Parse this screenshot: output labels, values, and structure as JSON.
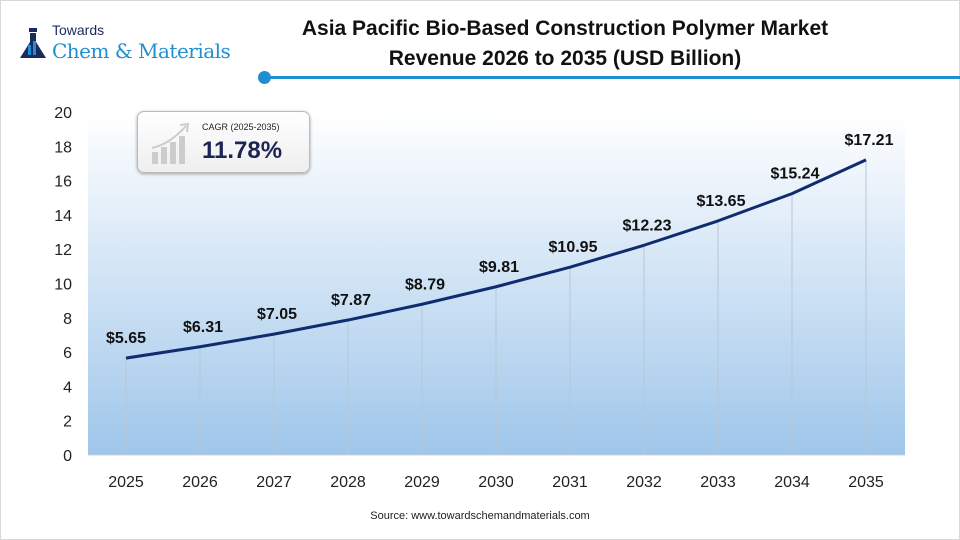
{
  "logo": {
    "line1": "Towards",
    "line2": "Chem & Materials"
  },
  "chart_data": {
    "type": "line",
    "title": "Asia Pacific Bio-Based Construction Polymer Market Revenue 2026 to 2035 (USD Billion)",
    "title_lines": [
      "Asia Pacific Bio-Based Construction Polymer Market",
      "Revenue 2026 to 2035 (USD Billion)"
    ],
    "categories": [
      "2025",
      "2026",
      "2027",
      "2028",
      "2029",
      "2030",
      "2031",
      "2032",
      "2033",
      "2034",
      "2035"
    ],
    "values": [
      5.65,
      6.31,
      7.05,
      7.87,
      8.79,
      9.81,
      10.95,
      12.23,
      13.65,
      15.24,
      17.21
    ],
    "data_labels": [
      "$5.65",
      "$6.31",
      "$7.05",
      "$7.87",
      "$8.79",
      "$9.81",
      "$10.95",
      "$12.23",
      "$13.65",
      "$15.24",
      "$17.21"
    ],
    "ylim": [
      0,
      20
    ],
    "yticks": [
      "0",
      "2",
      "4",
      "6",
      "8",
      "10",
      "12",
      "14",
      "16",
      "18",
      "20"
    ],
    "xlabel": "",
    "ylabel": "",
    "grid": "vertical drop lines",
    "legend": "none",
    "colors": {
      "line": "#0f2d6e",
      "area_top": "#ffffff",
      "area_bottom": "#9fc6ea",
      "accent": "#1f8fd1"
    }
  },
  "cagr": {
    "label": "CAGR (2025-2035)",
    "value": "11.78%"
  },
  "source": "Source: www.towardschemandmaterials.com"
}
